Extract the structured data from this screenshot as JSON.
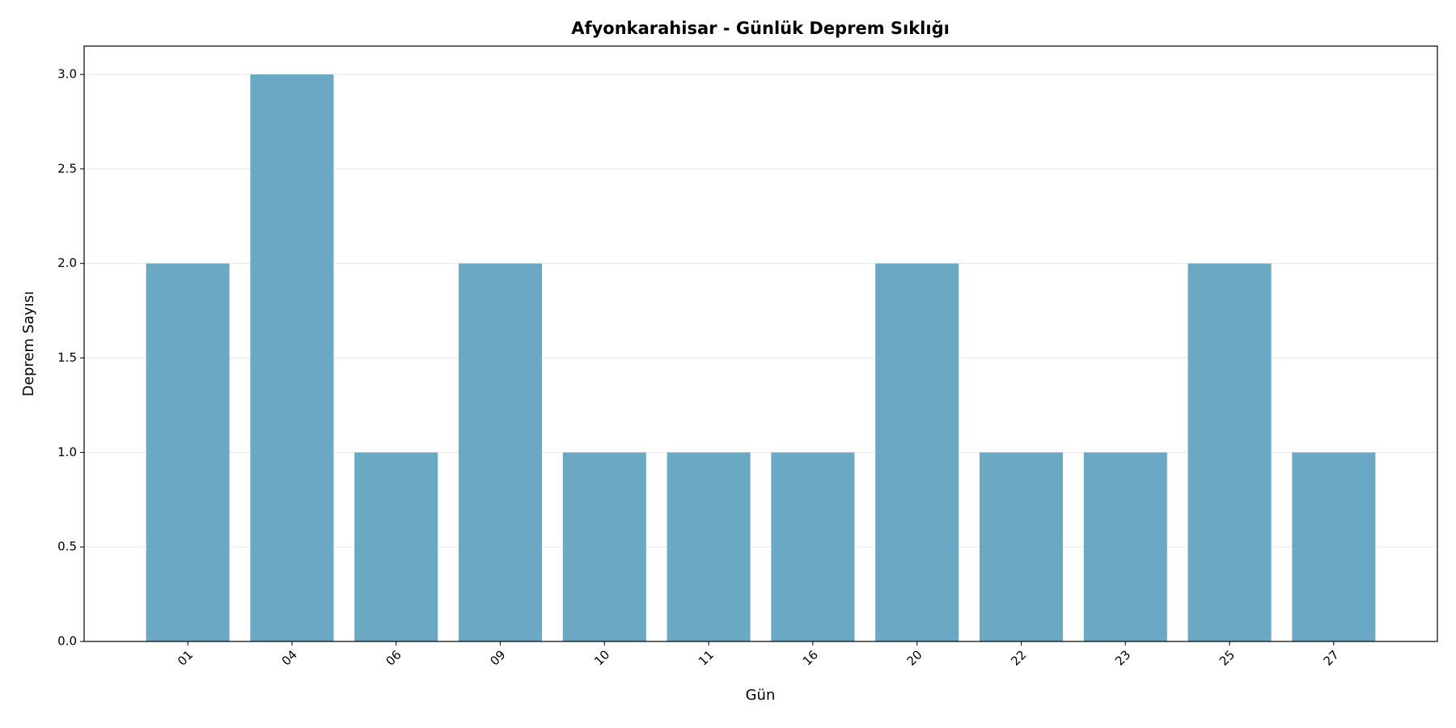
{
  "chart_data": {
    "type": "bar",
    "title": "Afyonkarahisar - Günlük Deprem Sıklığı",
    "x_label": "Gün",
    "y_label": "Deprem Sayısı",
    "categories": [
      "01",
      "04",
      "06",
      "09",
      "10",
      "11",
      "16",
      "20",
      "22",
      "23",
      "25",
      "27"
    ],
    "values": [
      2,
      3,
      1,
      2,
      1,
      1,
      1,
      2,
      1,
      1,
      2,
      1
    ],
    "color": "#6aa8c4",
    "ylim": [
      0,
      3.15
    ],
    "yticks": [
      {
        "value": 0,
        "label": "0.0"
      },
      {
        "value": 0.5,
        "label": "0.5"
      },
      {
        "value": 1,
        "label": "1.0"
      },
      {
        "value": 1.5,
        "label": "1.5"
      },
      {
        "value": 2,
        "label": "2.0"
      },
      {
        "value": 2.5,
        "label": "2.5"
      },
      {
        "value": 3,
        "label": "3.0"
      }
    ],
    "grid": true
  }
}
